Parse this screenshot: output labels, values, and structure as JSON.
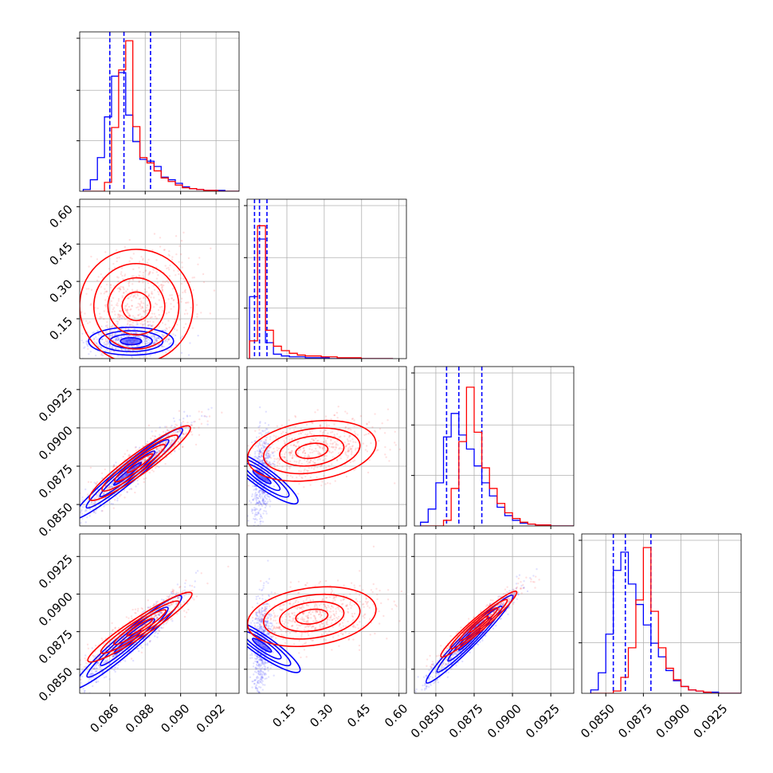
{
  "colors": {
    "series_a": "#0000ff",
    "series_b": "#ff0000",
    "grid": "#b0b0b0",
    "background": "#ffffff"
  },
  "chart_data": {
    "type": "corner",
    "grid": true,
    "series": [
      {
        "color": "#0000ff",
        "quantiles": [
          [
            0.086,
            0.0868,
            0.0883
          ],
          [
            0.02,
            0.04,
            0.07
          ],
          [
            0.0857,
            0.0865,
            0.088
          ],
          [
            0.0855,
            0.0863,
            0.088
          ]
        ],
        "histograms": [
          {
            "start": 0.0845,
            "step": 0.0004,
            "counts": [
              2,
              13,
              38,
              84,
              130,
              134,
              86,
              56,
              36,
              34,
              28,
              16,
              13,
              9,
              5,
              3,
              2,
              1,
              1,
              1,
              0,
              0,
              0
            ]
          },
          {
            "start": 0.0,
            "step": 0.032,
            "counts": [
              70,
              135,
              18,
              5,
              3,
              2,
              2,
              1,
              1,
              1,
              0,
              0,
              0,
              0,
              0,
              0,
              0,
              0
            ]
          },
          {
            "start": 0.084,
            "step": 0.0005,
            "counts": [
              4,
              18,
              46,
              95,
              120,
              97,
              82,
              64,
              46,
              32,
              20,
              11,
              6,
              3,
              2,
              1,
              1,
              0,
              0,
              0,
              0
            ]
          },
          {
            "start": 0.084,
            "step": 0.0005,
            "counts": [
              3,
              18,
              52,
              108,
              124,
              96,
              78,
              60,
              44,
              32,
              20,
              11,
              6,
              3,
              2,
              1,
              1,
              0,
              0,
              0,
              0
            ]
          }
        ],
        "clouds": [
          {
            "row": 1,
            "col": 0,
            "center": [
              0.0872,
              0.06
            ],
            "sigma": [
              0.0012,
              0.028
            ],
            "rho": 0.0
          },
          {
            "row": 2,
            "col": 0,
            "center": [
              0.087,
              0.087
            ],
            "sigma": [
              0.0016,
              0.0016
            ],
            "rho": 0.95
          },
          {
            "row": 2,
            "col": 1,
            "center": [
              0.05,
              0.0868
            ],
            "sigma": [
              0.02,
              0.0015
            ],
            "rho": 0.3
          },
          {
            "row": 3,
            "col": 0,
            "center": [
              0.087,
              0.0868
            ],
            "sigma": [
              0.0016,
              0.0017
            ],
            "rho": 0.95
          },
          {
            "row": 3,
            "col": 1,
            "center": [
              0.05,
              0.0866
            ],
            "sigma": [
              0.02,
              0.0016
            ],
            "rho": 0.3
          },
          {
            "row": 3,
            "col": 2,
            "center": [
              0.0872,
              0.087
            ],
            "sigma": [
              0.0016,
              0.0017
            ],
            "rho": 0.97
          }
        ]
      },
      {
        "color": "#ff0000",
        "quantiles": [],
        "histograms": [
          {
            "start": 0.0845,
            "step": 0.0004,
            "counts": [
              0,
              0,
              0,
              10,
              72,
              137,
              170,
              73,
              38,
              32,
              23,
              15,
              11,
              7,
              4,
              3,
              2,
              1,
              1,
              0,
              0,
              0,
              0
            ]
          },
          {
            "start": 0.0,
            "step": 0.032,
            "counts": [
              20,
              150,
              32,
              14,
              9,
              6,
              4,
              3,
              3,
              2,
              2,
              1,
              1,
              1,
              0,
              0,
              0,
              0
            ]
          },
          {
            "start": 0.084,
            "step": 0.0005,
            "counts": [
              0,
              0,
              0,
              6,
              40,
              90,
              148,
              100,
              62,
              40,
              24,
              14,
              8,
              4,
              2,
              1,
              1,
              0,
              0,
              0,
              0
            ]
          },
          {
            "start": 0.084,
            "step": 0.0005,
            "counts": [
              0,
              0,
              0,
              2,
              14,
              40,
              82,
              128,
              72,
              40,
              22,
              12,
              6,
              3,
              2,
              1,
              0,
              0,
              0,
              0,
              0
            ]
          }
        ],
        "clouds": [
          {
            "row": 1,
            "col": 0,
            "center": [
              0.0875,
              0.2
            ],
            "sigma": [
              0.0016,
              0.12
            ],
            "rho": 0.3
          },
          {
            "row": 2,
            "col": 0,
            "center": [
              0.0877,
              0.0877
            ],
            "sigma": [
              0.0014,
              0.0013
            ],
            "rho": 0.9
          },
          {
            "row": 2,
            "col": 1,
            "center": [
              0.25,
              0.0885
            ],
            "sigma": [
              0.13,
              0.001
            ],
            "rho": 0.3
          },
          {
            "row": 3,
            "col": 0,
            "center": [
              0.0877,
              0.0878
            ],
            "sigma": [
              0.0014,
              0.0012
            ],
            "rho": 0.9
          },
          {
            "row": 3,
            "col": 1,
            "center": [
              0.25,
              0.0885
            ],
            "sigma": [
              0.13,
              0.001
            ],
            "rho": 0.3
          },
          {
            "row": 3,
            "col": 2,
            "center": [
              0.0878,
              0.088
            ],
            "sigma": [
              0.0013,
              0.0012
            ],
            "rho": 0.95
          }
        ]
      }
    ],
    "dimensions": [
      {
        "range": [
          0.0843,
          0.0933
        ],
        "ticks": [
          0.086,
          0.088,
          0.09,
          0.092
        ],
        "tick_labels": [
          "0.086",
          "0.088",
          "0.090",
          "0.092"
        ],
        "hist_max": 180
      },
      {
        "range": [
          -0.01,
          0.63
        ],
        "ticks": [
          0.15,
          0.3,
          0.45,
          0.6
        ],
        "tick_labels": [
          "0.15",
          "0.30",
          "0.45",
          "0.60"
        ],
        "hist_max": 180
      },
      {
        "range": [
          0.0836,
          0.094
        ],
        "ticks": [
          0.085,
          0.0875,
          0.09,
          0.0925
        ],
        "tick_labels": [
          "0.0850",
          "0.0875",
          "0.0900",
          "0.0925"
        ],
        "hist_max": 170
      },
      {
        "range": [
          0.0834,
          0.094
        ],
        "ticks": [
          0.085,
          0.0875,
          0.09,
          0.0925
        ],
        "tick_labels": [
          "0.0850",
          "0.0875",
          "0.0900",
          "0.0925"
        ],
        "hist_max": 140
      }
    ]
  }
}
